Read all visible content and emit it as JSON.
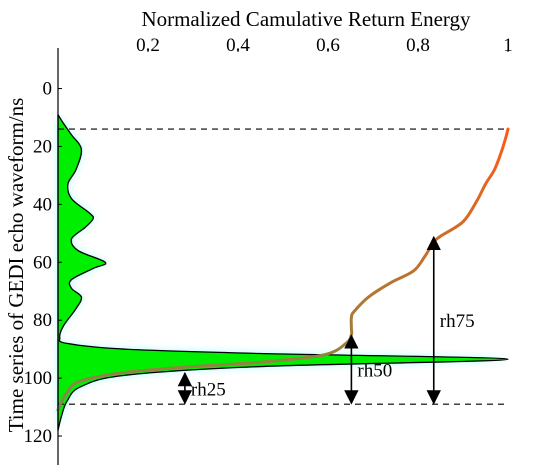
{
  "chart_data": {
    "type": "area",
    "title": "",
    "xlabel": "Normalized Camulative Return Energy",
    "ylabel": "Time series of GEDI echo waveform/ns",
    "x_axis_position": "top",
    "y_axis_direction": "down",
    "xlim": [
      0,
      1
    ],
    "ylim": [
      -14,
      130
    ],
    "xticks": [
      0.2,
      0.4,
      0.6,
      0.8,
      1
    ],
    "xtick_labels": [
      "0.2",
      "0.4",
      "0.6",
      "0.8",
      "1"
    ],
    "yticks": [
      0,
      20,
      40,
      60,
      80,
      100,
      120
    ],
    "ytick_labels": [
      "0",
      "20",
      "40",
      "60",
      "80",
      "100",
      "120"
    ],
    "grid": false,
    "legend": "none",
    "reference_lines": [
      {
        "y": 14,
        "style": "dashed"
      },
      {
        "y": 109,
        "style": "dashed"
      }
    ],
    "series": [
      {
        "kind": "waveform",
        "fill": "#00ee00",
        "halo": "#9ff5ff",
        "points": [
          [
            0,
            9
          ],
          [
            0.012,
            12
          ],
          [
            0.03,
            16
          ],
          [
            0.052,
            21
          ],
          [
            0.04,
            28
          ],
          [
            0.022,
            33
          ],
          [
            0.03,
            38
          ],
          [
            0.07,
            43
          ],
          [
            0.078,
            45
          ],
          [
            0.06,
            48
          ],
          [
            0.03,
            52
          ],
          [
            0.045,
            56
          ],
          [
            0.105,
            60
          ],
          [
            0.08,
            62
          ],
          [
            0.03,
            66
          ],
          [
            0.03,
            69
          ],
          [
            0.052,
            72
          ],
          [
            0.04,
            76
          ],
          [
            0.012,
            82
          ],
          [
            0.004,
            86
          ],
          [
            0.02,
            88
          ],
          [
            0.15,
            90
          ],
          [
            0.45,
            91.5
          ],
          [
            1.0,
            93.5
          ],
          [
            0.45,
            96
          ],
          [
            0.15,
            99
          ],
          [
            0.05,
            103
          ],
          [
            0.02,
            108
          ],
          [
            0.008,
            113
          ],
          [
            0,
            118
          ]
        ]
      },
      {
        "kind": "cumulative",
        "color_gradient": [
          "#7f8a4a",
          "#ff5a14"
        ],
        "points": [
          [
            0,
            111
          ],
          [
            0.02,
            105
          ],
          [
            0.05,
            101
          ],
          [
            0.15,
            98
          ],
          [
            0.3,
            96
          ],
          [
            0.45,
            94.5
          ],
          [
            0.59,
            92
          ],
          [
            0.64,
            88
          ],
          [
            0.652,
            85
          ],
          [
            0.652,
            83
          ],
          [
            0.652,
            79
          ],
          [
            0.658,
            77
          ],
          [
            0.69,
            72
          ],
          [
            0.74,
            67
          ],
          [
            0.79,
            63
          ],
          [
            0.815,
            58
          ],
          [
            0.835,
            53
          ],
          [
            0.85,
            51
          ],
          [
            0.9,
            46
          ],
          [
            0.93,
            39
          ],
          [
            0.95,
            33
          ],
          [
            0.97,
            28
          ],
          [
            0.985,
            22
          ],
          [
            0.995,
            17
          ],
          [
            1.0,
            14
          ]
        ]
      }
    ],
    "annotations": [
      {
        "label": "rh25",
        "x": 0.282,
        "y_from": 98,
        "y_to": 109
      },
      {
        "label": "rh50",
        "x": 0.652,
        "y_from": 85,
        "y_to": 109
      },
      {
        "label": "rh75",
        "x": 0.835,
        "y_from": 51,
        "y_to": 109
      }
    ]
  }
}
